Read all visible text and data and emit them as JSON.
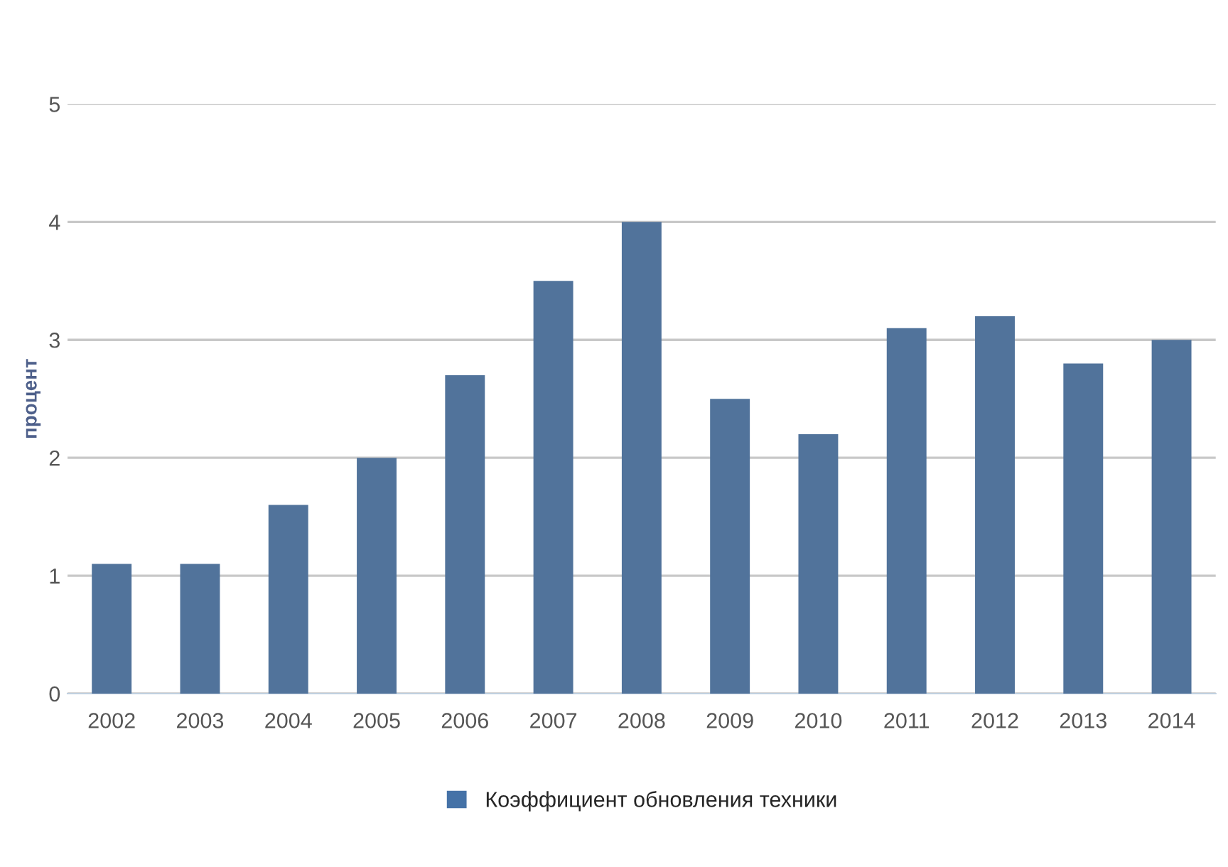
{
  "chart_data": {
    "type": "bar",
    "ylabel": "процент",
    "categories": [
      "2002",
      "2003",
      "2004",
      "2005",
      "2006",
      "2007",
      "2008",
      "2009",
      "2010",
      "2011",
      "2012",
      "2013",
      "2014"
    ],
    "series": [
      {
        "name": "Коэффициент обновления техники",
        "color": "#4572a7",
        "values": [
          1.1,
          1.1,
          1.6,
          2.0,
          2.7,
          3.5,
          4.0,
          2.5,
          2.2,
          3.1,
          3.2,
          2.8,
          3.0
        ]
      }
    ],
    "ylim": [
      0,
      5
    ],
    "yticks": [
      0,
      1,
      2,
      3,
      4,
      5
    ],
    "grid": "y",
    "legend": "bottom"
  }
}
